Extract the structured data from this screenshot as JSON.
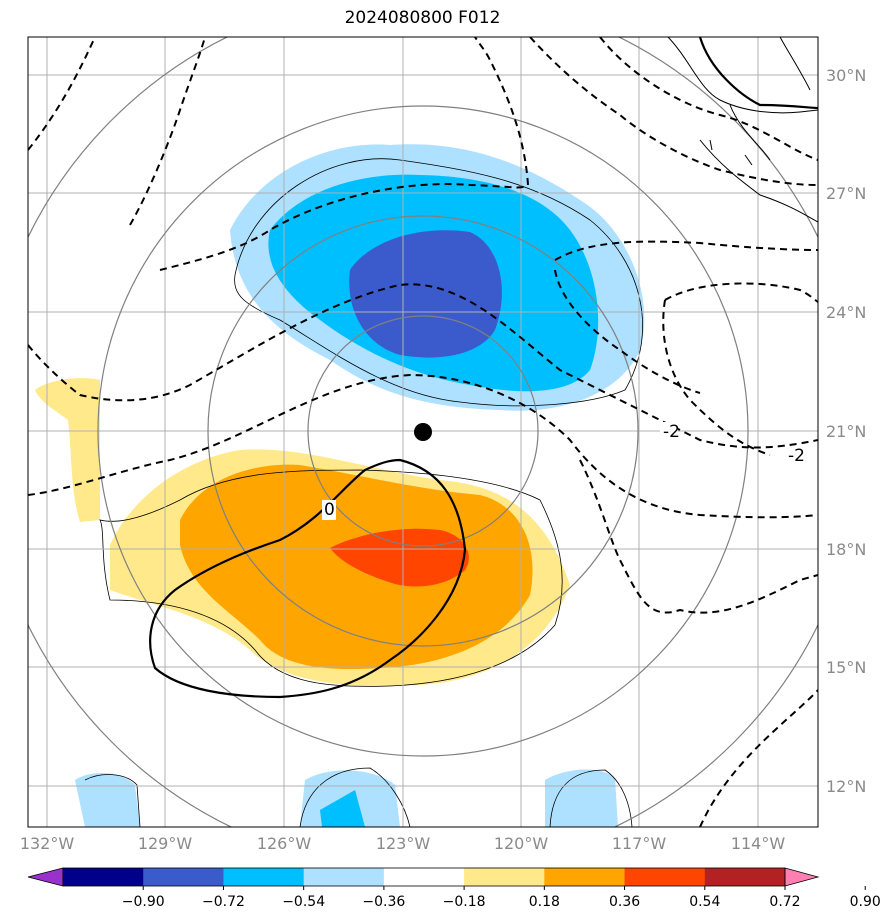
{
  "title": "2024080800 F012",
  "map": {
    "lon_labels": [
      "132°W",
      "129°W",
      "126°W",
      "123°W",
      "120°W",
      "117°W",
      "114°W"
    ],
    "lat_labels": [
      "30°N",
      "27°N",
      "24°N",
      "21°N",
      "18°N",
      "15°N",
      "12°N"
    ],
    "contour_labels": [
      "-2",
      "0",
      "-2"
    ],
    "center_marker": "storm-center-dot"
  },
  "colorbar": {
    "ticks": [
      "−0.90",
      "−0.72",
      "−0.54",
      "−0.36",
      "−0.18",
      "0.18",
      "0.36",
      "0.54",
      "0.72",
      "0.90"
    ],
    "colors": [
      "#9932cc",
      "#00008b",
      "#3b5bcc",
      "#00bfff",
      "#aee0ff",
      "#ffffff",
      "#ffe98a",
      "#ffa500",
      "#ff4500",
      "#b22222",
      "#ff80b0"
    ]
  }
}
